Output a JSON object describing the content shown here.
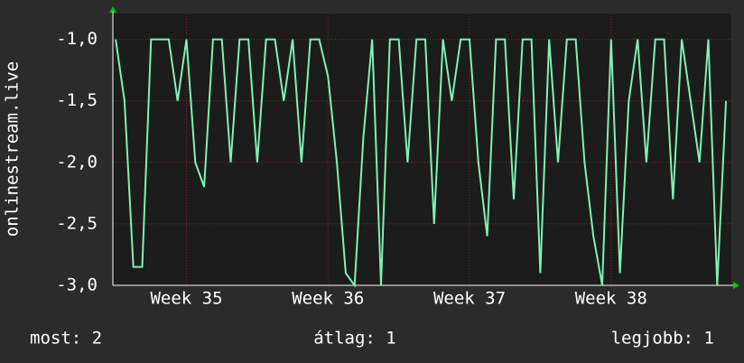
{
  "chart_data": {
    "type": "line",
    "y_label": "onlinestream.live",
    "x": [
      34.5,
      34.5625,
      34.625,
      34.6875,
      34.75,
      34.8125,
      34.875,
      34.9375,
      35,
      35.0625,
      35.125,
      35.1875,
      35.25,
      35.3125,
      35.375,
      35.4375,
      35.5,
      35.5625,
      35.625,
      35.6875,
      35.75,
      35.8125,
      35.875,
      35.9375,
      36,
      36.0625,
      36.125,
      36.1875,
      36.25,
      36.3125,
      36.375,
      36.4375,
      36.5,
      36.5625,
      36.625,
      36.6875,
      36.75,
      36.8125,
      36.875,
      36.9375,
      37,
      37.0625,
      37.125,
      37.1875,
      37.25,
      37.3125,
      37.375,
      37.4375,
      37.5,
      37.5625,
      37.625,
      37.6875,
      37.75,
      37.8125,
      37.875,
      37.9375,
      38,
      38.0625,
      38.125,
      38.1875,
      38.25,
      38.3125,
      38.375,
      38.4375,
      38.5,
      38.5625,
      38.625,
      38.6875,
      38.75,
      38.8125
    ],
    "values": [
      -1,
      -1.5,
      -2.85,
      -2.85,
      -1,
      -1,
      -1,
      -1.5,
      -1,
      -2,
      -2.2,
      -1,
      -1,
      -2,
      -1,
      -1,
      -2,
      -1,
      -1,
      -1.5,
      -1,
      -2,
      -1,
      -1,
      -1.3,
      -2,
      -2.9,
      -3,
      -1.8,
      -1,
      -3,
      -1,
      -1,
      -2,
      -1,
      -1,
      -2.5,
      -1,
      -1.5,
      -1,
      -1,
      -2,
      -2.6,
      -1,
      -1,
      -2.3,
      -1,
      -1,
      -2.9,
      -1,
      -2,
      -1,
      -1,
      -2,
      -2.6,
      -3,
      -1,
      -2.9,
      -1.5,
      -1,
      -2,
      -1,
      -1,
      -2.3,
      -1,
      -1.5,
      -2,
      -1,
      -3,
      -1.5
    ],
    "color": "#80f0b8",
    "xlim": [
      34.48,
      38.85
    ],
    "xticks": [
      {
        "value": 35,
        "label": "Week 35"
      },
      {
        "value": 36,
        "label": "Week 36"
      },
      {
        "value": 37,
        "label": "Week 37"
      },
      {
        "value": 38,
        "label": "Week 38"
      }
    ],
    "ylim": [
      -3,
      -0.79
    ],
    "yticks": [
      {
        "value": -3,
        "label": "-3,0"
      },
      {
        "value": -2.5,
        "label": "-2,5"
      },
      {
        "value": -2,
        "label": "-2,0"
      },
      {
        "value": -1.5,
        "label": "-1,5"
      },
      {
        "value": -1,
        "label": "-1,0"
      }
    ],
    "grid": true,
    "legend_items": [
      "most: 2",
      "átlag: 1",
      "legjobb: 1"
    ]
  }
}
